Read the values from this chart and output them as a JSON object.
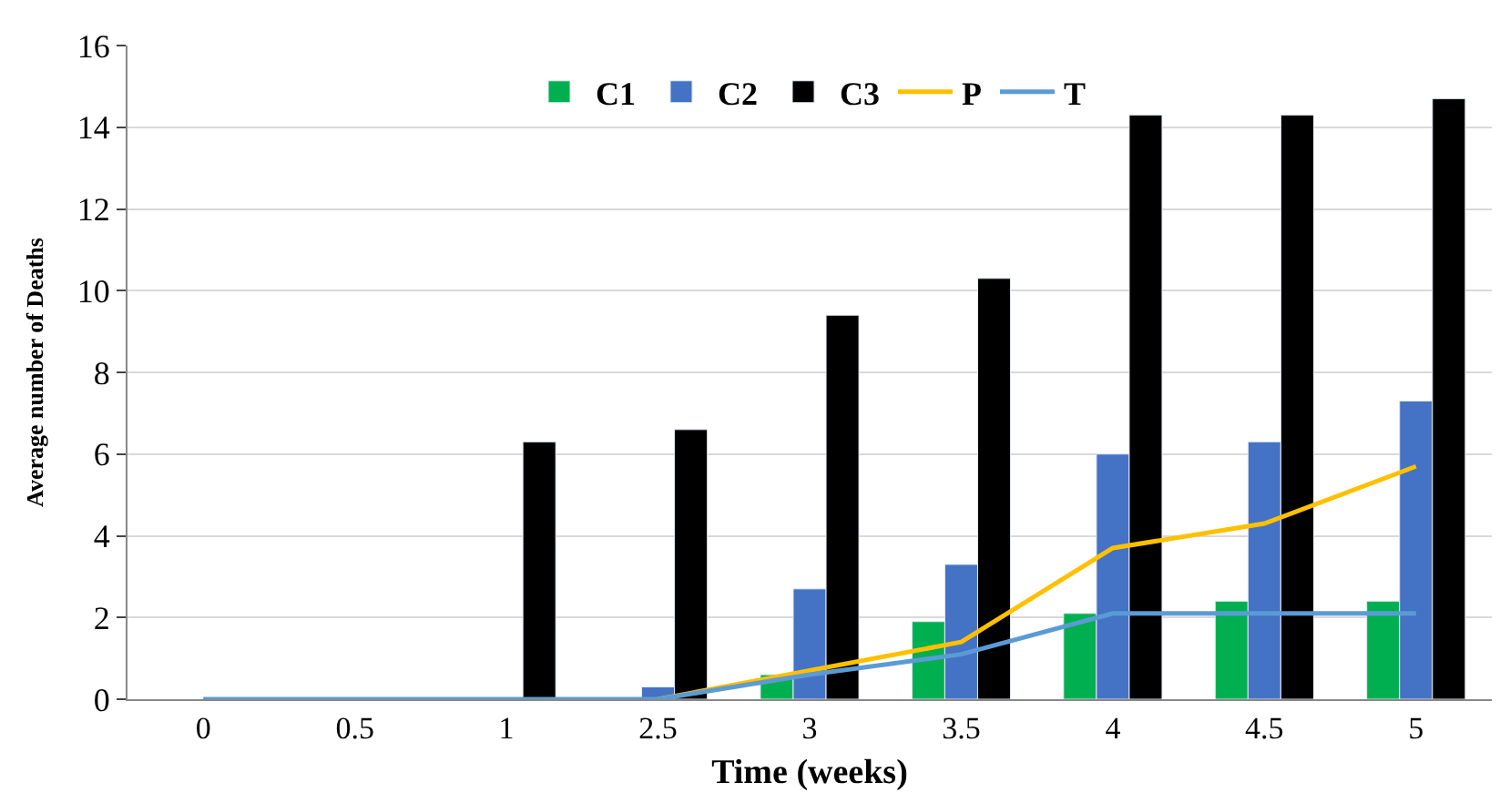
{
  "chart_data": {
    "type": "bar",
    "xlabel": "Time (weeks)",
    "ylabel": "Average number of Deaths",
    "categories": [
      "0",
      "0.5",
      "1",
      "2.5",
      "3",
      "3.5",
      "4",
      "4.5",
      "5"
    ],
    "series": [
      {
        "name": "C1",
        "color": "#00b050",
        "values": [
          null,
          null,
          null,
          null,
          0.6,
          1.9,
          2.1,
          2.4,
          2.4
        ]
      },
      {
        "name": "C2",
        "color": "#4472c4",
        "values": [
          null,
          null,
          null,
          0.3,
          2.7,
          3.3,
          6.0,
          6.3,
          7.3
        ]
      },
      {
        "name": "C3",
        "color": "#000000",
        "values": [
          null,
          null,
          6.3,
          6.6,
          9.4,
          10.3,
          14.3,
          14.3,
          14.7
        ]
      },
      {
        "name": "P",
        "type": "line",
        "color": "#ffc000",
        "values": [
          null,
          null,
          null,
          0,
          0.7,
          1.4,
          3.7,
          4.3,
          5.7
        ]
      },
      {
        "name": "T",
        "type": "line",
        "color": "#5b9bd5",
        "values": [
          0,
          0,
          0,
          0,
          0.6,
          1.1,
          2.1,
          2.1,
          2.1
        ]
      }
    ],
    "ylim": [
      0,
      16
    ],
    "yticks": [
      0,
      2,
      4,
      6,
      8,
      10,
      12,
      14,
      16
    ],
    "grid": "y",
    "legend": "top",
    "marker": "none",
    "line_style": "solid"
  }
}
